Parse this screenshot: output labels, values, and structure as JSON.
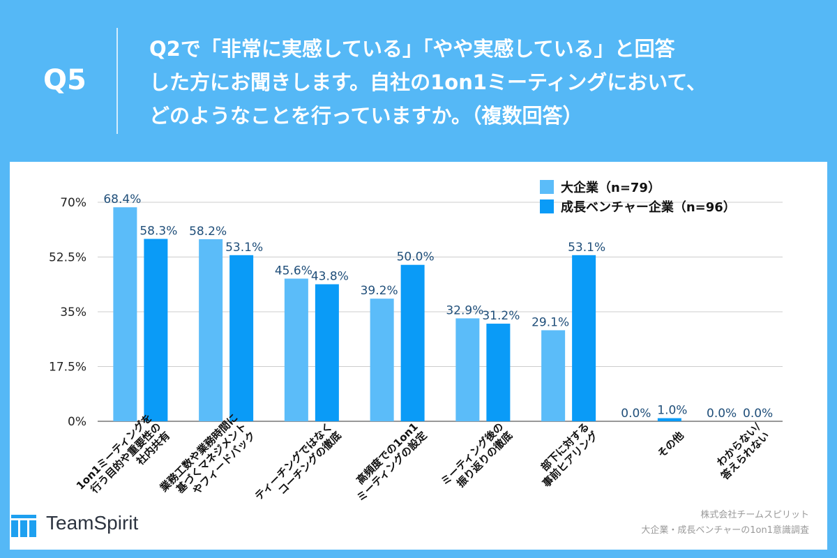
{
  "header": {
    "q_number": "Q5",
    "question_lines": [
      "Q2で「非常に実感している」「やや実感している」と回答",
      "した方にお聞きします。自社の1on1ミーティングにおいて、",
      "どのようなことを行っていますか。（複数回答）"
    ]
  },
  "colors": {
    "background": "#55b8f6",
    "series1": "#5bbcf9",
    "series2": "#0a9bf7",
    "label": "#1f4e79"
  },
  "chart_data": {
    "type": "bar",
    "title": "",
    "xlabel": "",
    "ylabel": "",
    "ylim": [
      0,
      70
    ],
    "yticks": [
      0,
      17.5,
      35,
      52.5,
      70
    ],
    "ytick_labels": [
      "0%",
      "17.5%",
      "35%",
      "52.5%",
      "70%"
    ],
    "categories": [
      [
        "1on1ミーティングを",
        "行う目的や重要性の",
        "社内共有"
      ],
      [
        "業務工数や業務時間に",
        "基づくマネジメント",
        "やフィードバック"
      ],
      [
        "ティーチングではなく",
        "コーチングの徹底"
      ],
      [
        "高頻度での1on1",
        "ミーティングの設定"
      ],
      [
        "ミーティング後の",
        "振り返りの徹底"
      ],
      [
        "部下に対する",
        "事前ヒアリング"
      ],
      [
        "その他"
      ],
      [
        "わからない/",
        "答えられない"
      ]
    ],
    "series": [
      {
        "name": "大企業（n=79）",
        "values": [
          68.4,
          58.2,
          45.6,
          39.2,
          32.9,
          29.1,
          0.0,
          0.0
        ],
        "labels": [
          "68.4%",
          "58.2%",
          "45.6%",
          "39.2%",
          "32.9%",
          "29.1%",
          "0.0%",
          "0.0%"
        ]
      },
      {
        "name": "成長ベンチャー企業（n=96）",
        "values": [
          58.3,
          53.1,
          43.8,
          50.0,
          31.2,
          53.1,
          1.0,
          0.0
        ],
        "labels": [
          "58.3%",
          "53.1%",
          "43.8%",
          "50.0%",
          "31.2%",
          "53.1%",
          "1.0%",
          "0.0%"
        ]
      }
    ],
    "legend_position": "top-right",
    "grid": true
  },
  "footer": {
    "logo_text": "TeamSpirit",
    "source_lines": [
      "株式会社チームスピリット",
      "大企業・成長ベンチャーの1on1意識調査"
    ]
  }
}
